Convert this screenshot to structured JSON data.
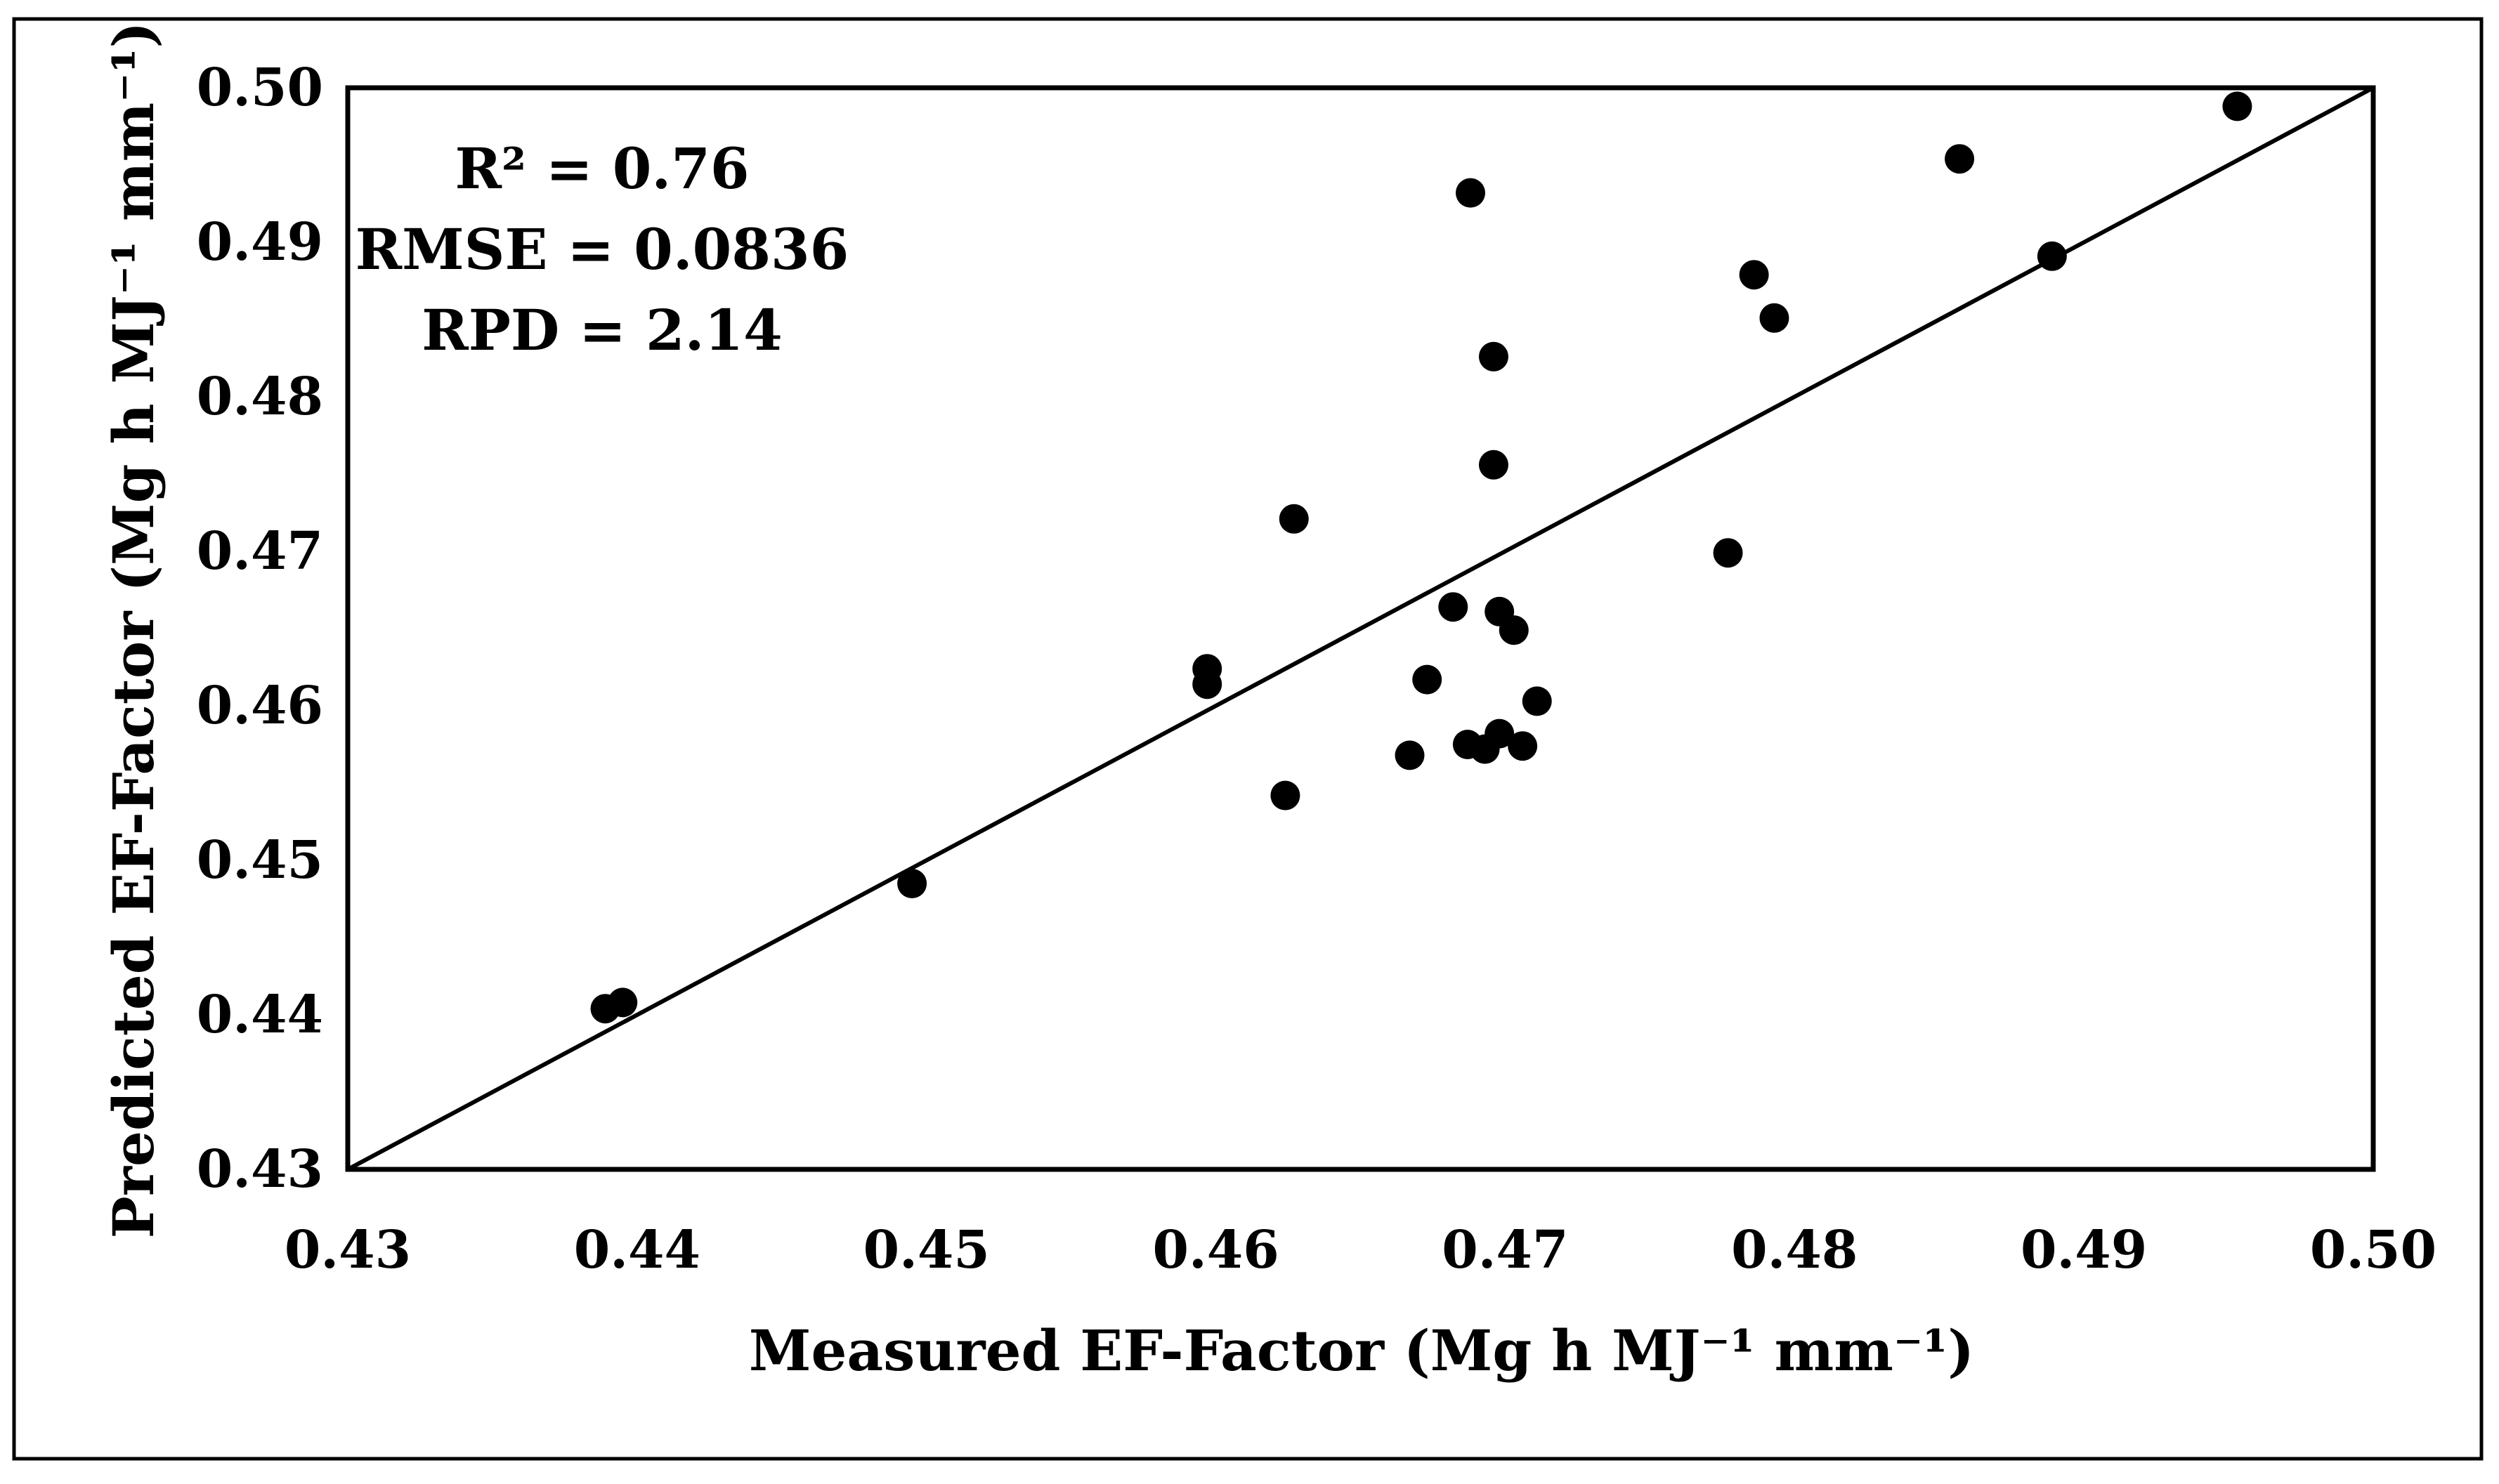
{
  "chart_data": {
    "type": "scatter",
    "title": "",
    "xlabel": "Measured EF-Factor (Mg h MJ⁻¹ mm⁻¹)",
    "ylabel": "Predicted EF-Factor (Mg h MJ⁻¹ mm⁻¹)",
    "xlim": [
      0.43,
      0.5
    ],
    "ylim": [
      0.43,
      0.5
    ],
    "x_ticks": [
      "0.43",
      "0.44",
      "0.45",
      "0.46",
      "0.47",
      "0.48",
      "0.49",
      "0.50"
    ],
    "y_ticks": [
      "0.43",
      "0.44",
      "0.45",
      "0.46",
      "0.47",
      "0.48",
      "0.49",
      "0.50"
    ],
    "grid": false,
    "reference_line": {
      "type": "1:1",
      "from": [
        0.43,
        0.43
      ],
      "to": [
        0.5,
        0.5
      ]
    },
    "annotations": [
      "R² = 0.76",
      "RMSE = 0.0836",
      "RPD = 2.14"
    ],
    "series": [
      {
        "name": "EF-Factor",
        "points": [
          [
            0.4389,
            0.4404
          ],
          [
            0.4395,
            0.4408
          ],
          [
            0.4495,
            0.4485
          ],
          [
            0.4597,
            0.4624
          ],
          [
            0.4597,
            0.4614
          ],
          [
            0.4624,
            0.4542
          ],
          [
            0.4627,
            0.4721
          ],
          [
            0.4667,
            0.4568
          ],
          [
            0.4673,
            0.4617
          ],
          [
            0.4682,
            0.4664
          ],
          [
            0.4687,
            0.4575
          ],
          [
            0.4688,
            0.4932
          ],
          [
            0.4693,
            0.4572
          ],
          [
            0.4696,
            0.4826
          ],
          [
            0.4696,
            0.4756
          ],
          [
            0.4698,
            0.4582
          ],
          [
            0.4698,
            0.4661
          ],
          [
            0.4703,
            0.4649
          ],
          [
            0.4706,
            0.4574
          ],
          [
            0.4711,
            0.4603
          ],
          [
            0.4777,
            0.4699
          ],
          [
            0.4786,
            0.4879
          ],
          [
            0.4793,
            0.4851
          ],
          [
            0.4857,
            0.4954
          ],
          [
            0.4889,
            0.4891
          ],
          [
            0.4953,
            0.4988
          ]
        ]
      }
    ]
  }
}
